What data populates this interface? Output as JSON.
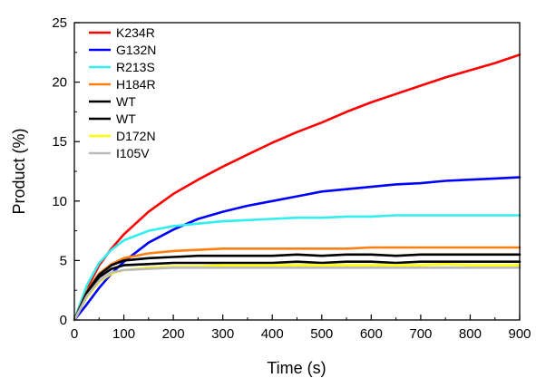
{
  "chart_data": {
    "type": "line",
    "xlabel": "Time (s)",
    "ylabel": "Product (%)",
    "xlim": [
      0,
      900
    ],
    "ylim": [
      0,
      25
    ],
    "xticks": [
      0,
      100,
      200,
      300,
      400,
      500,
      600,
      700,
      800,
      900
    ],
    "yticks": [
      0,
      5,
      10,
      15,
      20,
      25
    ],
    "grid": false,
    "legend_position": "top-left",
    "x": [
      0,
      25,
      50,
      75,
      100,
      150,
      200,
      250,
      300,
      350,
      400,
      450,
      500,
      550,
      600,
      650,
      700,
      750,
      800,
      850,
      900
    ],
    "series": [
      {
        "name": "K234R",
        "color": "#ff0000",
        "values": [
          0,
          2.6,
          4.6,
          6.0,
          7.2,
          9.1,
          10.6,
          11.8,
          12.9,
          13.9,
          14.9,
          15.8,
          16.6,
          17.5,
          18.3,
          19.0,
          19.7,
          20.4,
          21.0,
          21.6,
          22.3
        ]
      },
      {
        "name": "G132N",
        "color": "#0000ff",
        "values": [
          0,
          1.3,
          2.7,
          3.9,
          4.9,
          6.5,
          7.6,
          8.5,
          9.1,
          9.6,
          10.0,
          10.4,
          10.8,
          11.0,
          11.2,
          11.4,
          11.5,
          11.7,
          11.8,
          11.9,
          12.0
        ]
      },
      {
        "name": "R213S",
        "color": "#33eeee",
        "values": [
          0,
          2.9,
          4.8,
          5.9,
          6.7,
          7.5,
          7.9,
          8.1,
          8.3,
          8.4,
          8.5,
          8.6,
          8.6,
          8.7,
          8.7,
          8.8,
          8.8,
          8.8,
          8.8,
          8.8,
          8.8
        ]
      },
      {
        "name": "H184R",
        "color": "#ff7f10",
        "values": [
          0,
          2.4,
          3.9,
          4.7,
          5.2,
          5.6,
          5.8,
          5.9,
          6.0,
          6.0,
          6.0,
          6.0,
          6.0,
          6.0,
          6.1,
          6.1,
          6.1,
          6.1,
          6.1,
          6.1,
          6.1
        ]
      },
      {
        "name": "WT",
        "color": "#000000",
        "values": [
          0,
          2.3,
          3.8,
          4.6,
          5.0,
          5.2,
          5.3,
          5.4,
          5.4,
          5.4,
          5.4,
          5.5,
          5.4,
          5.5,
          5.5,
          5.4,
          5.5,
          5.5,
          5.5,
          5.5,
          5.5
        ]
      },
      {
        "name": "WT",
        "color": "#000000",
        "values": [
          0,
          2.2,
          3.6,
          4.3,
          4.6,
          4.7,
          4.8,
          4.8,
          4.8,
          4.8,
          4.8,
          4.9,
          4.8,
          4.9,
          4.9,
          4.8,
          4.9,
          4.9,
          4.9,
          4.9,
          4.9
        ]
      },
      {
        "name": "D172N",
        "color": "#ffff00",
        "values": [
          0,
          1.9,
          3.2,
          3.9,
          4.2,
          4.4,
          4.5,
          4.5,
          4.6,
          4.6,
          4.6,
          4.6,
          4.6,
          4.6,
          4.6,
          4.6,
          4.6,
          4.7,
          4.6,
          4.6,
          4.6
        ]
      },
      {
        "name": "I105V",
        "color": "#bbbbbb",
        "values": [
          0,
          2.0,
          3.3,
          4.0,
          4.2,
          4.3,
          4.4,
          4.4,
          4.4,
          4.4,
          4.4,
          4.4,
          4.4,
          4.4,
          4.4,
          4.4,
          4.4,
          4.4,
          4.4,
          4.4,
          4.4
        ]
      }
    ]
  }
}
